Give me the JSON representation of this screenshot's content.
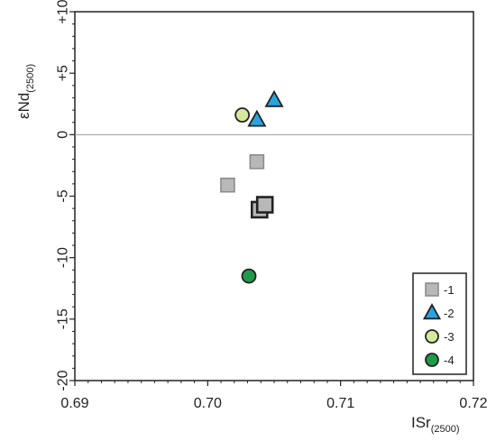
{
  "chart_data": {
    "type": "scatter",
    "xlabel": {
      "main": "ISr",
      "sub": "(2500)"
    },
    "ylabel": {
      "main": "εNd",
      "sub": "(2500)"
    },
    "xlim": [
      0.69,
      0.72
    ],
    "ylim": [
      -20,
      10
    ],
    "x_ticks": [
      0.69,
      0.7,
      0.71,
      0.72
    ],
    "x_tick_labels": [
      "0.69",
      "0.70",
      "0.71",
      "0.72"
    ],
    "y_ticks": [
      10,
      5,
      0,
      -5,
      -10,
      -15,
      -20
    ],
    "y_tick_labels": [
      "+10",
      "+5",
      "0",
      "-5",
      "-10",
      "-15",
      "-20"
    ],
    "reference_line_y": 0,
    "grid": false,
    "legend_position": "bottom-right",
    "series": [
      {
        "name": "-1",
        "marker": "square",
        "color": "#b8b8b8",
        "points": [
          {
            "x": 0.7015,
            "y": -4.1,
            "bold": false
          },
          {
            "x": 0.7037,
            "y": -2.2,
            "bold": false
          },
          {
            "x": 0.7039,
            "y": -6.1,
            "bold": true
          },
          {
            "x": 0.7043,
            "y": -5.7,
            "bold": true
          }
        ]
      },
      {
        "name": "-2",
        "marker": "triangle",
        "color": "#2aa3dc",
        "points": [
          {
            "x": 0.7037,
            "y": 1.2
          },
          {
            "x": 0.705,
            "y": 2.8
          }
        ]
      },
      {
        "name": "-3",
        "marker": "circle",
        "color": "#d6e99a",
        "points": [
          {
            "x": 0.7026,
            "y": 1.6
          }
        ]
      },
      {
        "name": "-4",
        "marker": "circle",
        "color": "#1f9a4a",
        "points": [
          {
            "x": 0.7031,
            "y": -11.5
          }
        ]
      }
    ]
  }
}
